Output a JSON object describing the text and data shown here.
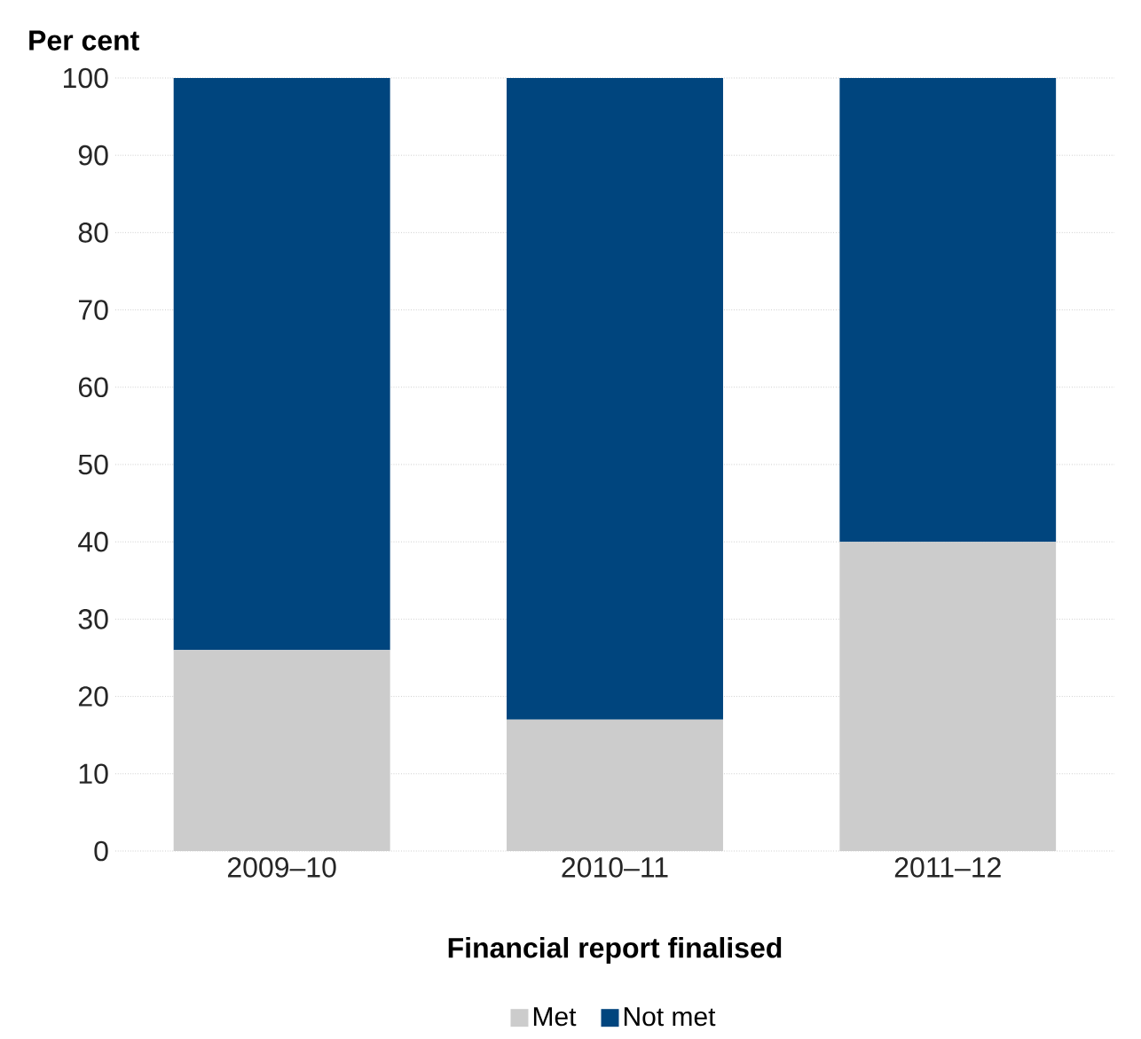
{
  "chart_data": {
    "type": "bar",
    "stacked": true,
    "ylabel": "Per cent",
    "xlabel": "Financial report finalised",
    "categories": [
      "2009–10",
      "2010–11",
      "2011–12"
    ],
    "series": [
      {
        "name": "Met",
        "color": "#cccccc",
        "values": [
          26,
          17,
          40
        ]
      },
      {
        "name": "Not met",
        "color": "#00457e",
        "values": [
          74,
          83,
          60
        ]
      }
    ],
    "ylim": [
      0,
      100
    ],
    "yticks": [
      0,
      10,
      20,
      30,
      40,
      50,
      60,
      70,
      80,
      90,
      100
    ],
    "grid": "y",
    "legend": "bottom"
  }
}
